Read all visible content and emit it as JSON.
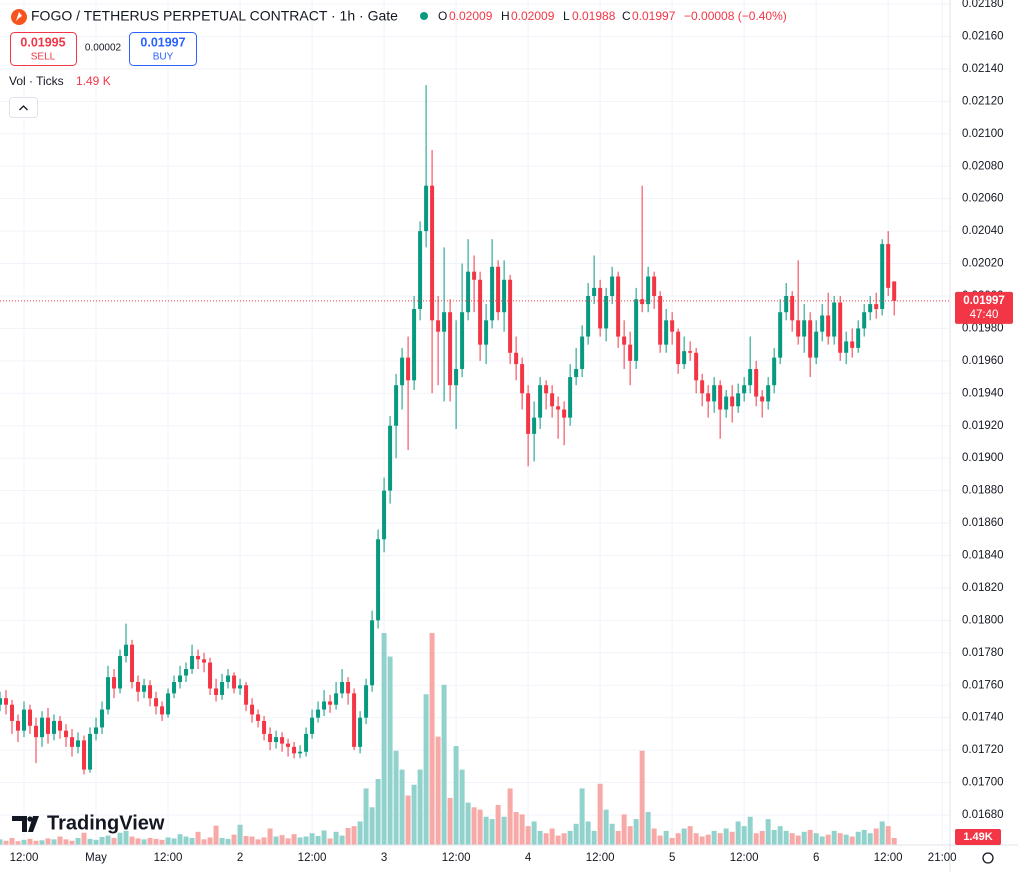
{
  "chart_data": {
    "type": "candlestick",
    "title": "FOGO / TETHERUS PERPETUAL CONTRACT · 1h · Gate",
    "ohlc_labels": [
      "O",
      "H",
      "L",
      "C"
    ],
    "change_label": "−0.00008 (−0.40%)",
    "volume_indicator": "Vol · Ticks",
    "volume_value_label": "1.49 K",
    "volume_axis_label": "1.49K",
    "countdown": "47:40",
    "up_color": "#089981",
    "down_color": "#f23645",
    "up_volume_color": "#92d2cc",
    "down_volume_color": "#f7a9a7",
    "grid": true,
    "xlim": [
      0,
      158.3
    ],
    "xticks": [
      {
        "value": 4,
        "label": "12:00"
      },
      {
        "value": 16,
        "label": "May"
      },
      {
        "value": 28,
        "label": "12:00"
      },
      {
        "value": 40,
        "label": "2"
      },
      {
        "value": 52,
        "label": "12:00"
      },
      {
        "value": 64,
        "label": "3"
      },
      {
        "value": 76,
        "label": "12:00"
      },
      {
        "value": 88,
        "label": "4"
      },
      {
        "value": 100,
        "label": "12:00"
      },
      {
        "value": 112,
        "label": "5"
      },
      {
        "value": 124,
        "label": "12:00"
      },
      {
        "value": 136,
        "label": "6"
      },
      {
        "value": 148,
        "label": "12:00"
      },
      {
        "value": 157,
        "label": "21:00"
      }
    ],
    "ylim": [
      0.016615,
      0.021825
    ],
    "yticks": [
      {
        "value": 0.0168,
        "label": "0.01680"
      },
      {
        "value": 0.017,
        "label": "0.01700"
      },
      {
        "value": 0.0172,
        "label": "0.01720"
      },
      {
        "value": 0.0174,
        "label": "0.01740"
      },
      {
        "value": 0.0176,
        "label": "0.01760"
      },
      {
        "value": 0.0178,
        "label": "0.01780"
      },
      {
        "value": 0.018,
        "label": "0.01800"
      },
      {
        "value": 0.0182,
        "label": "0.01820"
      },
      {
        "value": 0.0184,
        "label": "0.01840"
      },
      {
        "value": 0.0186,
        "label": "0.01860"
      },
      {
        "value": 0.0188,
        "label": "0.01880"
      },
      {
        "value": 0.019,
        "label": "0.01900"
      },
      {
        "value": 0.0192,
        "label": "0.01920"
      },
      {
        "value": 0.0194,
        "label": "0.01940"
      },
      {
        "value": 0.0196,
        "label": "0.01960"
      },
      {
        "value": 0.0198,
        "label": "0.01980"
      },
      {
        "value": 0.02,
        "label": "0.02000"
      },
      {
        "value": 0.0202,
        "label": "0.02020"
      },
      {
        "value": 0.0204,
        "label": "0.02040"
      },
      {
        "value": 0.0206,
        "label": "0.02060"
      },
      {
        "value": 0.0208,
        "label": "0.02080"
      },
      {
        "value": 0.021,
        "label": "0.02100"
      },
      {
        "value": 0.0212,
        "label": "0.02120"
      },
      {
        "value": 0.0214,
        "label": "0.02140"
      },
      {
        "value": 0.0216,
        "label": "0.02160"
      },
      {
        "value": 0.0218,
        "label": "0.02180"
      }
    ],
    "open": [
      0.01748,
      0.01752,
      0.01748,
      0.01738,
      0.01732,
      0.01745,
      0.01735,
      0.01728,
      0.0174,
      0.0173,
      0.01738,
      0.01732,
      0.01728,
      0.01722,
      0.01726,
      0.01708,
      0.0173,
      0.01734,
      0.01745,
      0.01765,
      0.01758,
      0.01778,
      0.01785,
      0.01762,
      0.01756,
      0.0176,
      0.01752,
      0.01747,
      0.01742,
      0.01755,
      0.01762,
      0.01766,
      0.0177,
      0.01778,
      0.01776,
      0.01774,
      0.01758,
      0.01754,
      0.01762,
      0.01766,
      0.01758,
      0.0176,
      0.01748,
      0.01742,
      0.01738,
      0.0173,
      0.01725,
      0.01728,
      0.01724,
      0.01722,
      0.01718,
      0.01719,
      0.0173,
      0.0174,
      0.01745,
      0.0175,
      0.01748,
      0.01755,
      0.01762,
      0.01755,
      0.01722,
      0.0174,
      0.0176,
      0.018,
      0.0185,
      0.0188,
      0.0192,
      0.01945,
      0.01962,
      0.01948,
      0.01992,
      0.0204,
      0.02068,
      0.01985,
      0.01978,
      0.0199,
      0.01945,
      0.01955,
      0.0199,
      0.02015,
      0.0201,
      0.0197,
      0.01985,
      0.02018,
      0.0199,
      0.0201,
      0.01965,
      0.01958,
      0.0194,
      0.01915,
      0.01925,
      0.01945,
      0.0194,
      0.01932,
      0.0193,
      0.01925,
      0.0195,
      0.01955,
      0.01975,
      0.02,
      0.02005,
      0.0198,
      0.02,
      0.02012,
      0.01975,
      0.0197,
      0.0196,
      0.01998,
      0.01995,
      0.02012,
      0.02,
      0.0197,
      0.01985,
      0.01978,
      0.01958,
      0.01966,
      0.01965,
      0.01948,
      0.0194,
      0.01935,
      0.01945,
      0.0193,
      0.01938,
      0.01932,
      0.0194,
      0.01945,
      0.01955,
      0.01938,
      0.01935,
      0.01945,
      0.01962,
      0.0199,
      0.02,
      0.01985,
      0.01975,
      0.01985,
      0.01962,
      0.01978,
      0.01988,
      0.01975,
      0.01996,
      0.01965,
      0.01972,
      0.01968,
      0.0198,
      0.0199,
      0.01995,
      0.01992,
      0.02032,
      0.02009
    ],
    "high": [
      0.01756,
      0.01757,
      0.01751,
      0.01742,
      0.0175,
      0.01748,
      0.0174,
      0.01744,
      0.01746,
      0.01742,
      0.01741,
      0.01736,
      0.01733,
      0.01731,
      0.01729,
      0.01734,
      0.0174,
      0.0175,
      0.01772,
      0.0177,
      0.01782,
      0.01798,
      0.01788,
      0.01766,
      0.01764,
      0.01763,
      0.01756,
      0.0175,
      0.01758,
      0.01766,
      0.01772,
      0.01774,
      0.01785,
      0.01782,
      0.0178,
      0.01777,
      0.01764,
      0.01767,
      0.0177,
      0.01768,
      0.01764,
      0.01762,
      0.01752,
      0.01745,
      0.01741,
      0.01734,
      0.01732,
      0.01731,
      0.01727,
      0.01725,
      0.01723,
      0.01734,
      0.01745,
      0.0175,
      0.01757,
      0.01754,
      0.01762,
      0.0177,
      0.01765,
      0.01758,
      0.01744,
      0.01764,
      0.01806,
      0.01856,
      0.01888,
      0.01926,
      0.01952,
      0.01968,
      0.01975,
      0.02,
      0.02046,
      0.0213,
      0.0209,
      0.02,
      0.0203,
      0.01998,
      0.01985,
      0.0202,
      0.02035,
      0.02025,
      0.02015,
      0.01995,
      0.02035,
      0.02022,
      0.02022,
      0.02013,
      0.01975,
      0.01962,
      0.01945,
      0.01935,
      0.0195,
      0.01948,
      0.01945,
      0.01938,
      0.01935,
      0.01958,
      0.01968,
      0.01982,
      0.02008,
      0.02025,
      0.0201,
      0.02005,
      0.02018,
      0.02015,
      0.01985,
      0.01978,
      0.02005,
      0.02068,
      0.02018,
      0.02015,
      0.02003,
      0.01992,
      0.0199,
      0.0198,
      0.01975,
      0.01972,
      0.01968,
      0.01952,
      0.01945,
      0.0195,
      0.01948,
      0.01942,
      0.01945,
      0.01946,
      0.0195,
      0.01975,
      0.0196,
      0.01942,
      0.0195,
      0.01968,
      0.01998,
      0.02008,
      0.02003,
      0.02022,
      0.01995,
      0.0199,
      0.01985,
      0.01995,
      0.02002,
      0.02,
      0.02,
      0.01978,
      0.0198,
      0.01985,
      0.01995,
      0.02,
      0.02002,
      0.02035,
      0.0204,
      0.02009
    ],
    "low": [
      0.01744,
      0.01742,
      0.0173,
      0.01725,
      0.01728,
      0.0173,
      0.01712,
      0.01722,
      0.01724,
      0.01726,
      0.01727,
      0.01722,
      0.01716,
      0.01718,
      0.01705,
      0.01706,
      0.01726,
      0.0173,
      0.01742,
      0.01752,
      0.01755,
      0.01774,
      0.01758,
      0.0175,
      0.01752,
      0.01747,
      0.01742,
      0.01738,
      0.0174,
      0.01752,
      0.01758,
      0.01762,
      0.01767,
      0.0177,
      0.01768,
      0.01754,
      0.0175,
      0.01751,
      0.01758,
      0.01755,
      0.01754,
      0.01744,
      0.01737,
      0.01734,
      0.01726,
      0.0172,
      0.01721,
      0.01719,
      0.01716,
      0.01715,
      0.01715,
      0.01716,
      0.01727,
      0.01737,
      0.01741,
      0.01743,
      0.01745,
      0.01752,
      0.01748,
      0.0172,
      0.01718,
      0.01736,
      0.01756,
      0.01795,
      0.01842,
      0.01872,
      0.019,
      0.0193,
      0.01905,
      0.01942,
      0.01985,
      0.0203,
      0.0194,
      0.01945,
      0.01935,
      0.01935,
      0.01918,
      0.0195,
      0.01985,
      0.0199,
      0.0196,
      0.01958,
      0.0198,
      0.01985,
      0.01978,
      0.01958,
      0.01948,
      0.0193,
      0.01895,
      0.01898,
      0.01918,
      0.0193,
      0.01925,
      0.01912,
      0.01908,
      0.0192,
      0.01945,
      0.0195,
      0.0197,
      0.01995,
      0.01975,
      0.01972,
      0.01995,
      0.01968,
      0.01955,
      0.01945,
      0.01955,
      0.0199,
      0.0199,
      0.01992,
      0.01965,
      0.01965,
      0.0197,
      0.01952,
      0.01955,
      0.0196,
      0.0194,
      0.01932,
      0.01925,
      0.01928,
      0.01912,
      0.01925,
      0.01922,
      0.01928,
      0.01935,
      0.0194,
      0.01932,
      0.01925,
      0.0193,
      0.0194,
      0.01958,
      0.01985,
      0.01978,
      0.0197,
      0.01965,
      0.0195,
      0.01958,
      0.01972,
      0.0197,
      0.0197,
      0.0196,
      0.01958,
      0.01962,
      0.01965,
      0.01975,
      0.01985,
      0.01986,
      0.01988,
      0.02,
      0.01988
    ],
    "close": [
      0.01752,
      0.01748,
      0.01738,
      0.01732,
      0.01745,
      0.01735,
      0.01728,
      0.0174,
      0.0173,
      0.01738,
      0.01732,
      0.01728,
      0.01722,
      0.01726,
      0.01708,
      0.0173,
      0.01734,
      0.01745,
      0.01765,
      0.01758,
      0.01778,
      0.01785,
      0.01762,
      0.01756,
      0.0176,
      0.01752,
      0.01747,
      0.01742,
      0.01755,
      0.01762,
      0.01766,
      0.0177,
      0.01778,
      0.01776,
      0.01774,
      0.01758,
      0.01754,
      0.01762,
      0.01766,
      0.01758,
      0.0176,
      0.01748,
      0.01742,
      0.01738,
      0.0173,
      0.01725,
      0.01728,
      0.01724,
      0.01722,
      0.01718,
      0.01719,
      0.0173,
      0.0174,
      0.01745,
      0.0175,
      0.01748,
      0.01755,
      0.01762,
      0.01755,
      0.01722,
      0.0174,
      0.0176,
      0.018,
      0.0185,
      0.0188,
      0.0192,
      0.01945,
      0.01962,
      0.01948,
      0.01992,
      0.0204,
      0.02068,
      0.01985,
      0.01978,
      0.0199,
      0.01945,
      0.01955,
      0.0199,
      0.02015,
      0.0201,
      0.0197,
      0.01985,
      0.02018,
      0.0199,
      0.0201,
      0.01965,
      0.01958,
      0.0194,
      0.01915,
      0.01925,
      0.01945,
      0.0194,
      0.01932,
      0.0193,
      0.01925,
      0.0195,
      0.01955,
      0.01975,
      0.02,
      0.02005,
      0.0198,
      0.02,
      0.02012,
      0.01975,
      0.0197,
      0.0196,
      0.01998,
      0.01995,
      0.02012,
      0.02,
      0.0197,
      0.01985,
      0.01978,
      0.01958,
      0.01966,
      0.01965,
      0.01948,
      0.0194,
      0.01935,
      0.01945,
      0.0193,
      0.01938,
      0.01932,
      0.0194,
      0.01945,
      0.01955,
      0.01938,
      0.01935,
      0.01945,
      0.01962,
      0.0199,
      0.02,
      0.01985,
      0.01975,
      0.01985,
      0.01962,
      0.01978,
      0.01988,
      0.01975,
      0.01996,
      0.01965,
      0.01972,
      0.01968,
      0.0198,
      0.0199,
      0.01995,
      0.01992,
      0.02032,
      0.02005,
      0.01997
    ],
    "volume": [
      1200,
      900,
      1500,
      800,
      1100,
      1300,
      900,
      1000,
      1400,
      1200,
      1800,
      1200,
      900,
      1500,
      2600,
      1300,
      1100,
      1700,
      2000,
      1500,
      2600,
      3000,
      1800,
      1400,
      1200,
      1500,
      1300,
      1100,
      1600,
      1400,
      2300,
      1800,
      1500,
      2800,
      1200,
      1600,
      4100,
      1500,
      1300,
      2200,
      4300,
      1900,
      1800,
      1200,
      1600,
      3500,
      1800,
      2100,
      1400,
      2300,
      1600,
      1800,
      2500,
      1900,
      3100,
      1400,
      2800,
      2000,
      3600,
      4000,
      5000,
      12000,
      8000,
      14000,
      45000,
      40000,
      20000,
      16000,
      10500,
      12800,
      16000,
      32000,
      45000,
      23000,
      34000,
      10000,
      21000,
      16000,
      9000,
      8000,
      7500,
      6000,
      5500,
      8500,
      6000,
      12000,
      7000,
      6500,
      4000,
      5000,
      3000,
      2500,
      3500,
      2000,
      2500,
      3000,
      4500,
      12000,
      5000,
      3000,
      13000,
      7500,
      4500,
      3000,
      6500,
      4000,
      5500,
      20000,
      7000,
      3500,
      2000,
      3000,
      1500,
      2500,
      3500,
      4000,
      2500,
      1800,
      2200,
      3000,
      2500,
      3500,
      2800,
      5000,
      4000,
      6000,
      2500,
      3000,
      5500,
      3200,
      4000,
      3000,
      2500,
      2000,
      2800,
      3200,
      2500,
      1800,
      2200,
      3000,
      2500,
      2200,
      1800,
      2800,
      3200,
      2500,
      3500,
      5000,
      4000,
      1490
    ]
  },
  "toolbar": {
    "sell_price": "0.01995",
    "sell": "SELL",
    "spread": "0.00002",
    "buy_price": "0.01997",
    "buy": "BUY"
  },
  "logo": "TradingView"
}
